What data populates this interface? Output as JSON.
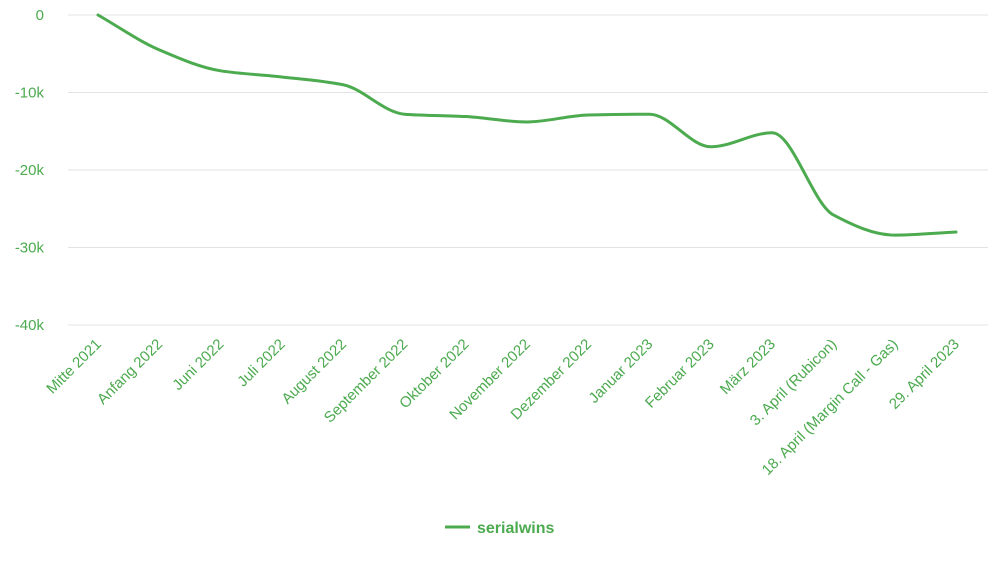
{
  "chart_data": {
    "type": "line",
    "categories": [
      "Mitte 2021",
      "Anfang 2022",
      "Juni 2022",
      "Juli 2022",
      "August 2022",
      "September 2022",
      "Oktober 2022",
      "November 2022",
      "Dezember 2022",
      "Januar 2023",
      "Februar 2023",
      "März 2023",
      "3. April (Rubicon)",
      "18. April (Margin Call - Gas)",
      "29. April 2023"
    ],
    "series": [
      {
        "name": "serialwins",
        "values": [
          0,
          -4500,
          -7200,
          -8000,
          -9000,
          -12800,
          -13100,
          -13800,
          -12900,
          -12800,
          -17000,
          -15200,
          -25800,
          -28400,
          -28000
        ],
        "color": "#4caa4f"
      }
    ],
    "y_ticks": [
      "0",
      "-10k",
      "-20k",
      "-30k",
      "-40k"
    ],
    "y_tick_values": [
      0,
      -10000,
      -20000,
      -30000,
      -40000
    ],
    "ylim": [
      -40000,
      0
    ],
    "grid": true,
    "legend_position": "bottom-center",
    "title": "",
    "xlabel": "",
    "ylabel": ""
  }
}
